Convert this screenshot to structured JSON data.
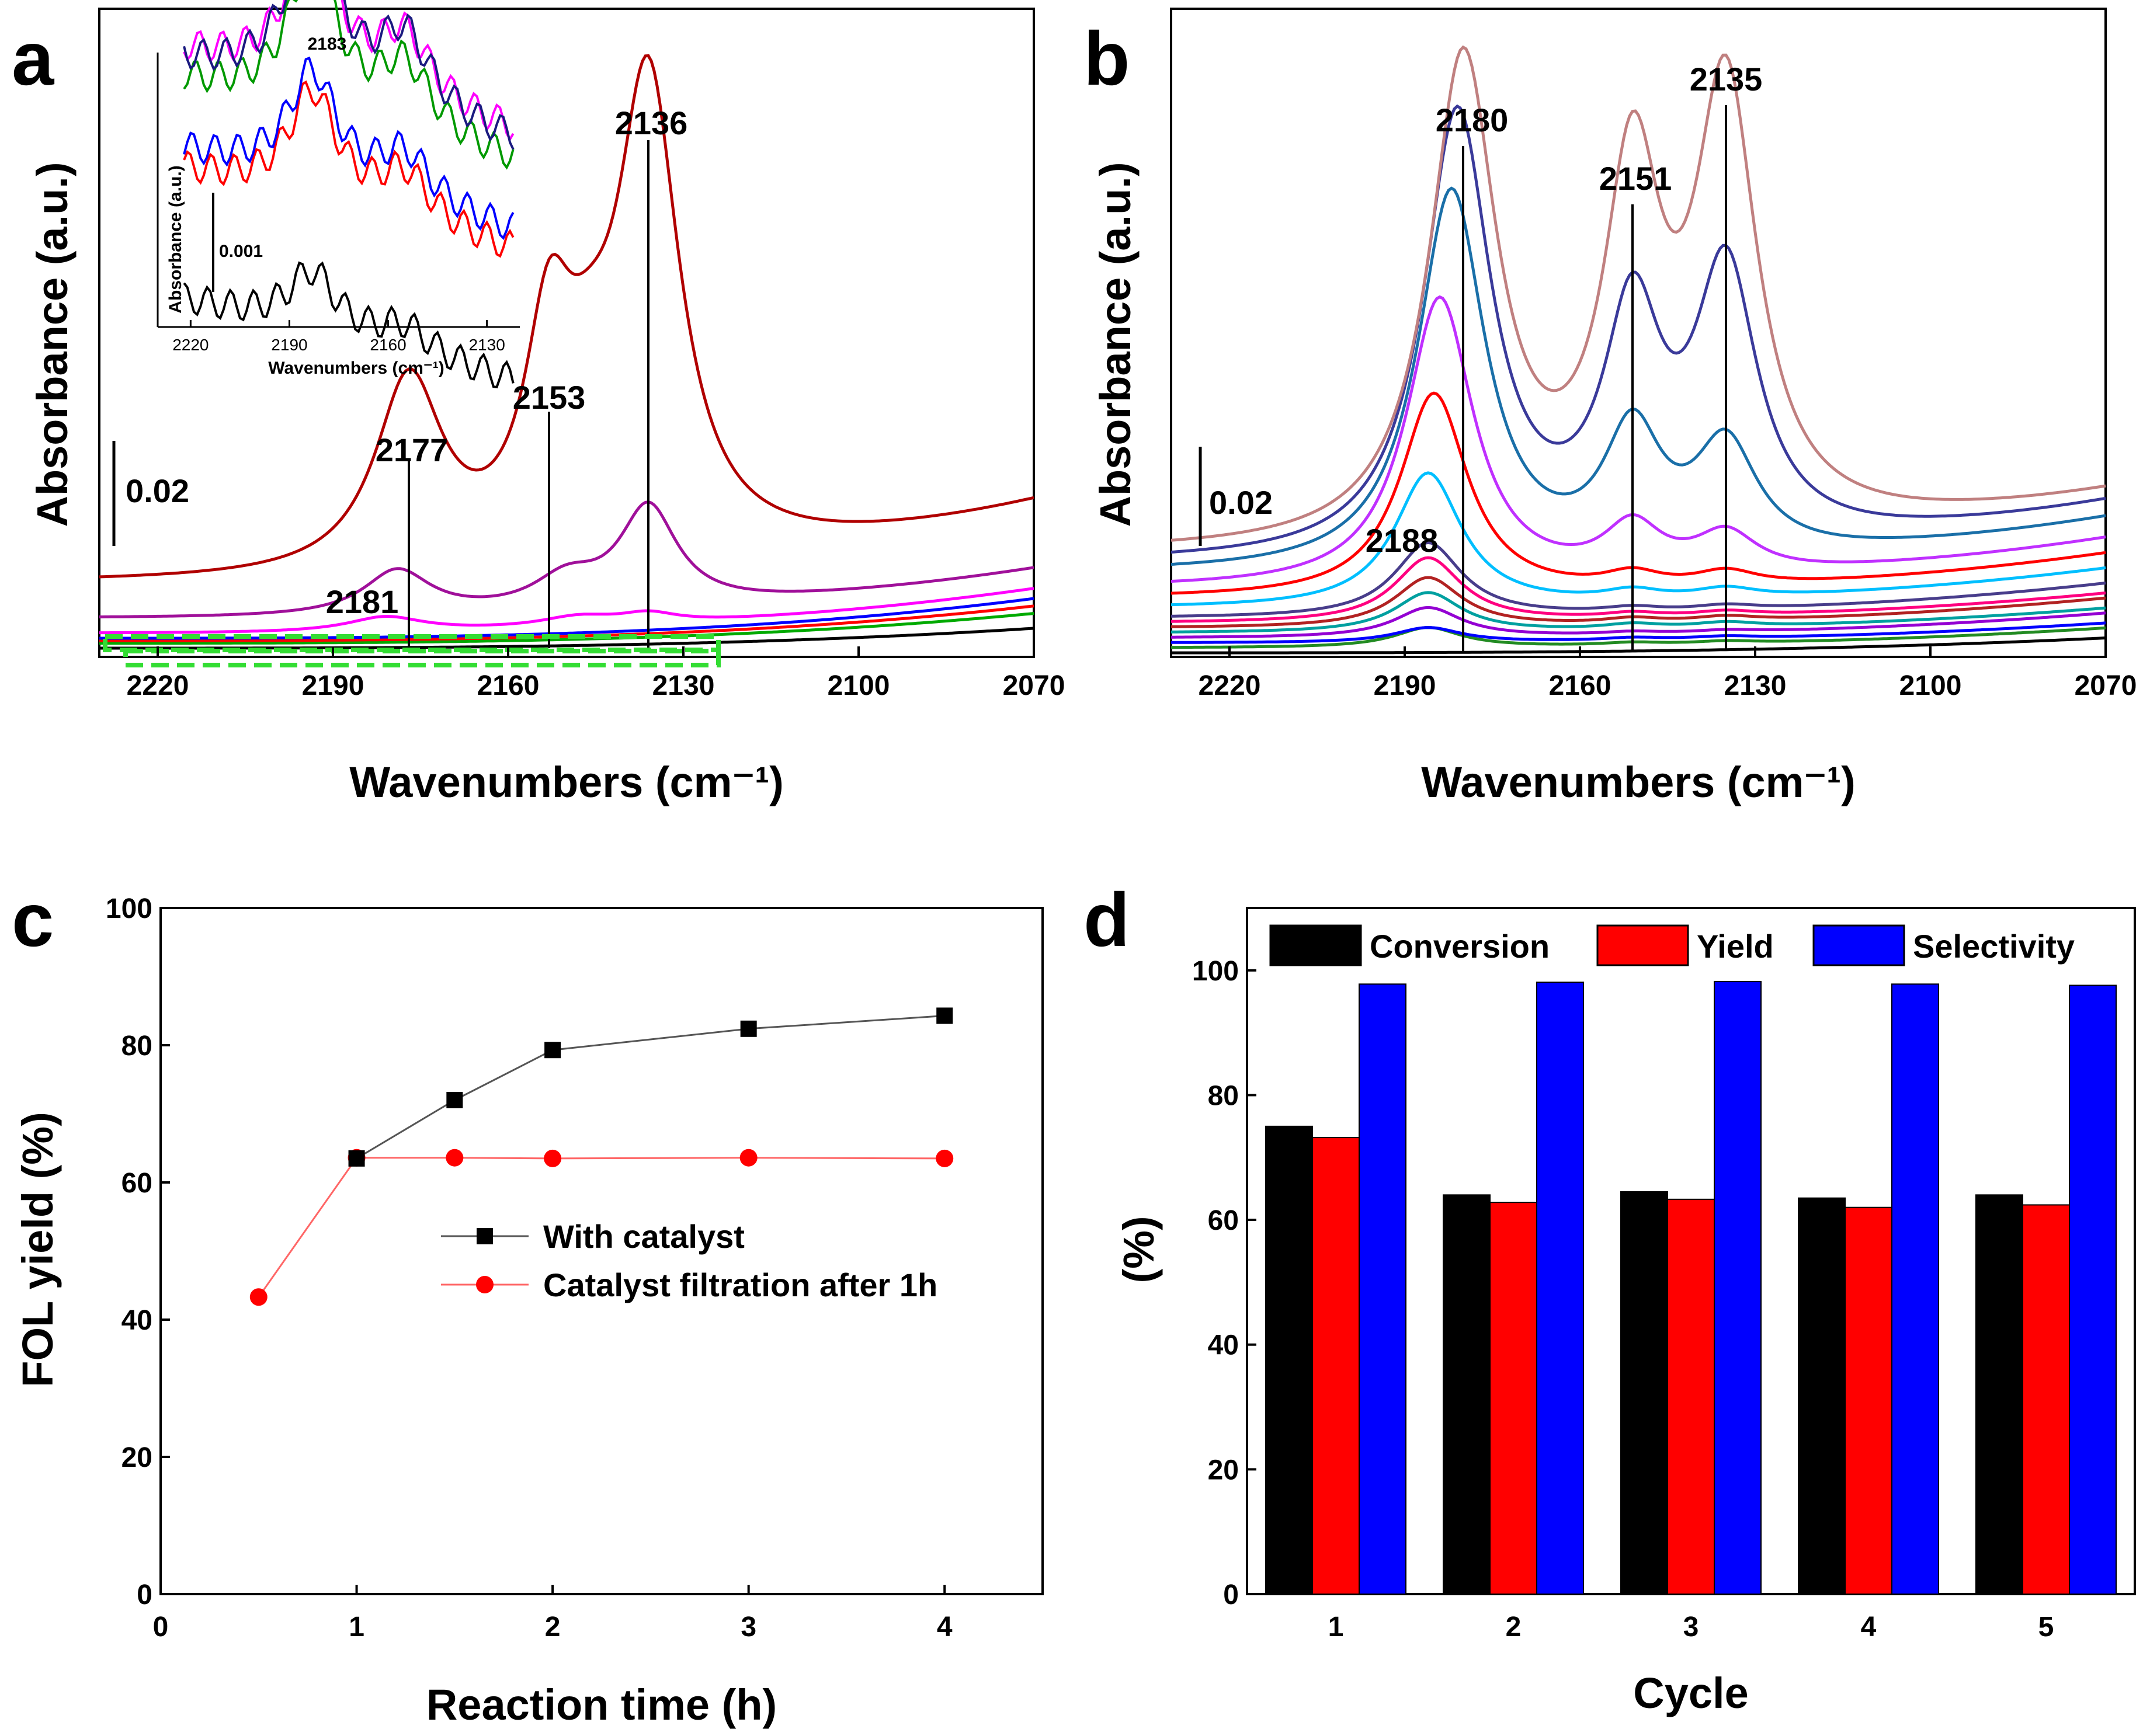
{
  "chart_data": [
    {
      "panel": "a",
      "type": "line",
      "xlabel": "Wavenumbers (cm⁻¹)",
      "ylabel": "Absorbance (a.u.)",
      "xlim": [
        2230,
        2070
      ],
      "x_ticks": [
        2220,
        2190,
        2160,
        2130,
        2100,
        2070
      ],
      "scale_bar_label": "0.02",
      "scale_bar_value": 0.02,
      "peak_labels": [
        "2136",
        "2153",
        "2177",
        "2181"
      ],
      "peak_lines": [
        2177,
        2153,
        2136
      ],
      "series": [
        {
          "name": "black",
          "color": "#000000",
          "offset": 0.0,
          "peaks": [],
          "baseline_slope": 0.004
        },
        {
          "name": "green",
          "color": "#00aa00",
          "offset": 0.001,
          "peaks": [],
          "baseline_slope": 0.006
        },
        {
          "name": "red",
          "color": "#ff0000",
          "offset": 0.0015,
          "peaks": [],
          "baseline_slope": 0.007
        },
        {
          "name": "blue",
          "color": "#0000ff",
          "offset": 0.002,
          "peaks": [],
          "baseline_slope": 0.008
        },
        {
          "name": "magenta",
          "color": "#ff00ff",
          "offset": 0.003,
          "peaks": [
            {
              "center": 2181,
              "height": 0.003,
              "width": 8
            },
            {
              "center": 2148,
              "height": 0.002,
              "width": 8
            },
            {
              "center": 2136,
              "height": 0.002,
              "width": 6
            }
          ],
          "baseline_slope": 0.009
        },
        {
          "name": "purple",
          "color": "#a0109a",
          "offset": 0.006,
          "peaks": [
            {
              "center": 2179,
              "height": 0.009,
              "width": 7
            },
            {
              "center": 2150,
              "height": 0.006,
              "width": 7
            },
            {
              "center": 2136,
              "height": 0.02,
              "width": 6
            }
          ],
          "baseline_slope": 0.01
        },
        {
          "name": "dark red",
          "color": "#b00000",
          "offset": 0.013,
          "peaks": [
            {
              "center": 2177,
              "height": 0.038,
              "width": 7
            },
            {
              "center": 2153,
              "height": 0.041,
              "width": 5
            },
            {
              "center": 2146,
              "height": 0.018,
              "width": 6
            },
            {
              "center": 2136,
              "height": 0.094,
              "width": 6.5
            }
          ],
          "baseline_slope": 0.016
        }
      ],
      "highlight_box": "green dashed",
      "inset": {
        "xlabel": "Wavenumbers (cm⁻¹)",
        "ylabel": "Absorbance (a.u.)",
        "x_ticks": [
          2220,
          2190,
          2160,
          2130
        ],
        "xlim": [
          2230,
          2120
        ],
        "peak_label": "2183",
        "scale_bar_label": "0.001",
        "scale_bar_value": 0.001,
        "series": [
          {
            "color": "#000000",
            "offset": 0.0,
            "height": 0.0006
          },
          {
            "color": "#ff0000",
            "offset": 0.0013,
            "height": 0.0011
          },
          {
            "color": "#0000ff",
            "offset": 0.0015,
            "height": 0.0011
          },
          {
            "color": "#009900",
            "offset": 0.0022,
            "height": 0.0015
          },
          {
            "color": "#ff00ff",
            "offset": 0.0025,
            "height": 0.0015
          },
          {
            "color": "#1a1a80",
            "offset": 0.0024,
            "height": 0.0017
          }
        ]
      }
    },
    {
      "panel": "b",
      "type": "line",
      "xlabel": "Wavenumbers (cm⁻¹)",
      "ylabel": "Absorbance (a.u.)",
      "xlim": [
        2230,
        2070
      ],
      "x_ticks": [
        2220,
        2190,
        2160,
        2130,
        2100,
        2070
      ],
      "scale_bar_label": "0.02",
      "scale_bar_value": 0.02,
      "peak_labels": [
        "2180",
        "2151",
        "2135",
        "2188"
      ],
      "peak_lines": [
        2180,
        2151,
        2135
      ],
      "series": [
        {
          "color": "#000000",
          "offset": 0.0,
          "p1": 0.0,
          "p2": 0.0,
          "p3": 0.0,
          "c1": 2186,
          "slope": 0.003
        },
        {
          "color": "#228b22",
          "offset": 0.001,
          "p1": 0.004,
          "p2": 0.0005,
          "p3": 0.0005,
          "c1": 2186,
          "slope": 0.004
        },
        {
          "color": "#0000ff",
          "offset": 0.002,
          "p1": 0.003,
          "p2": 0.0005,
          "p3": 0.0005,
          "c1": 2186,
          "slope": 0.004
        },
        {
          "color": "#9400d3",
          "offset": 0.003,
          "p1": 0.006,
          "p2": 0.0005,
          "p3": 0.0005,
          "c1": 2186,
          "slope": 0.005
        },
        {
          "color": "#00a0a0",
          "offset": 0.004,
          "p1": 0.008,
          "p2": 0.001,
          "p3": 0.001,
          "c1": 2186,
          "slope": 0.005
        },
        {
          "color": "#b22222",
          "offset": 0.005,
          "p1": 0.01,
          "p2": 0.001,
          "p3": 0.001,
          "c1": 2186,
          "slope": 0.006
        },
        {
          "color": "#ff0080",
          "offset": 0.006,
          "p1": 0.013,
          "p2": 0.001,
          "p3": 0.001,
          "c1": 2186,
          "slope": 0.006
        },
        {
          "color": "#483d8b",
          "offset": 0.007,
          "p1": 0.015,
          "p2": 0.001,
          "p3": 0.001,
          "c1": 2186,
          "slope": 0.007
        },
        {
          "color": "#00bfff",
          "offset": 0.009,
          "p1": 0.027,
          "p2": 0.002,
          "p3": 0.002,
          "c1": 2186,
          "slope": 0.008
        },
        {
          "color": "#ff0000",
          "offset": 0.011,
          "p1": 0.041,
          "p2": 0.003,
          "p3": 0.003,
          "c1": 2185,
          "slope": 0.009
        },
        {
          "color": "#c030ff",
          "offset": 0.013,
          "p1": 0.058,
          "p2": 0.01,
          "p3": 0.008,
          "c1": 2184,
          "slope": 0.01
        },
        {
          "color": "#1a6fa8",
          "offset": 0.016,
          "p1": 0.076,
          "p2": 0.025,
          "p3": 0.022,
          "c1": 2182,
          "slope": 0.011
        },
        {
          "color": "#3a3a9a",
          "offset": 0.018,
          "p1": 0.089,
          "p2": 0.045,
          "p3": 0.054,
          "c1": 2181,
          "slope": 0.012
        },
        {
          "color": "#c08080",
          "offset": 0.02,
          "p1": 0.097,
          "p2": 0.07,
          "p3": 0.087,
          "c1": 2180,
          "slope": 0.012
        }
      ]
    },
    {
      "panel": "c",
      "type": "line",
      "xlabel": "Reaction time (h)",
      "ylabel": "FOL yield (%)",
      "xlim": [
        0,
        4.5
      ],
      "ylim": [
        0,
        100
      ],
      "x_ticks": [
        0,
        1,
        2,
        3,
        4
      ],
      "y_ticks": [
        0,
        20,
        40,
        60,
        80,
        100
      ],
      "legend_position": "center-right",
      "series": [
        {
          "name": "With catalyst",
          "color": "#555555",
          "marker": "square",
          "marker_color": "#000000",
          "x": [
            1,
            1.5,
            2,
            3,
            4
          ],
          "y": [
            63.5,
            72,
            79.3,
            82.4,
            84.3
          ]
        },
        {
          "name": "Catalyst filtration after 1h",
          "color": "#ff6666",
          "marker": "circle",
          "marker_color": "#ff0000",
          "x": [
            0.5,
            1,
            1.5,
            2,
            3,
            4
          ],
          "y": [
            43.3,
            63.6,
            63.6,
            63.5,
            63.6,
            63.5
          ]
        }
      ]
    },
    {
      "panel": "d",
      "type": "bar",
      "xlabel": "Cycle",
      "ylabel": "(%)",
      "categories": [
        "1",
        "2",
        "3",
        "4",
        "5"
      ],
      "ylim": [
        0,
        110
      ],
      "y_ticks": [
        0,
        20,
        40,
        60,
        80,
        100
      ],
      "legend_position": "top",
      "series": [
        {
          "name": "Conversion",
          "color": "#000000",
          "values": [
            75,
            64,
            64.5,
            63.5,
            64
          ]
        },
        {
          "name": "Yield",
          "color": "#ff0000",
          "values": [
            73.2,
            62.8,
            63.3,
            62,
            62.4
          ]
        },
        {
          "name": "Selectivity",
          "color": "#0000ff",
          "values": [
            97.8,
            98.1,
            98.2,
            97.8,
            97.6
          ]
        }
      ]
    }
  ],
  "panel_letters": [
    "a",
    "b",
    "c",
    "d"
  ]
}
